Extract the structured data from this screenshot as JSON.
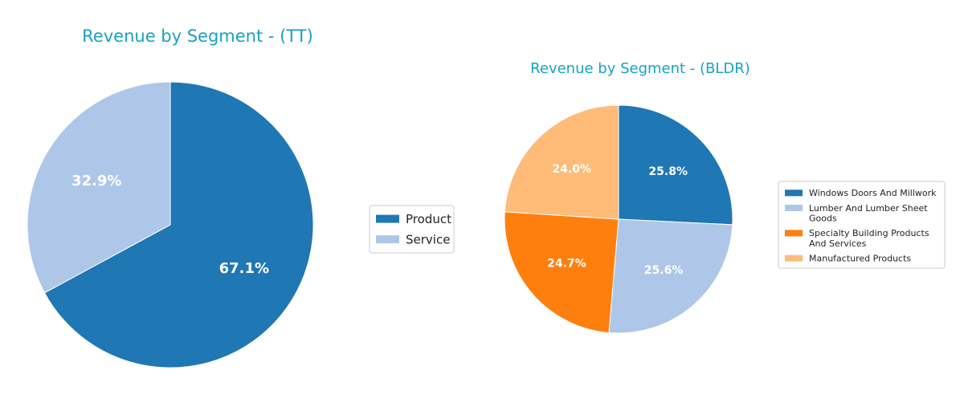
{
  "chart_data": [
    {
      "type": "pie",
      "title": "Revenue by Segment - (TT)",
      "legend_position": "right",
      "slices": [
        {
          "label": "Product",
          "value": 67.1,
          "value_label": "67.1%",
          "color": "#1f77b4"
        },
        {
          "label": "Service",
          "value": 32.9,
          "value_label": "32.9%",
          "color": "#aec7e8"
        }
      ]
    },
    {
      "type": "pie",
      "title": "Revenue by Segment - (BLDR)",
      "legend_position": "right",
      "slices": [
        {
          "label": "Windows Doors And Millwork",
          "value": 25.8,
          "value_label": "25.8%",
          "color": "#1f77b4"
        },
        {
          "label": "Lumber And Lumber Sheet Goods",
          "value": 25.6,
          "value_label": "25.6%",
          "color": "#aec7e8"
        },
        {
          "label": "Specialty Building Products And Services",
          "value": 24.7,
          "value_label": "24.7%",
          "color": "#ff7f0e"
        },
        {
          "label": "Manufactured Products",
          "value": 24.0,
          "value_label": "24.0%",
          "color": "#ffbb78"
        }
      ]
    }
  ]
}
